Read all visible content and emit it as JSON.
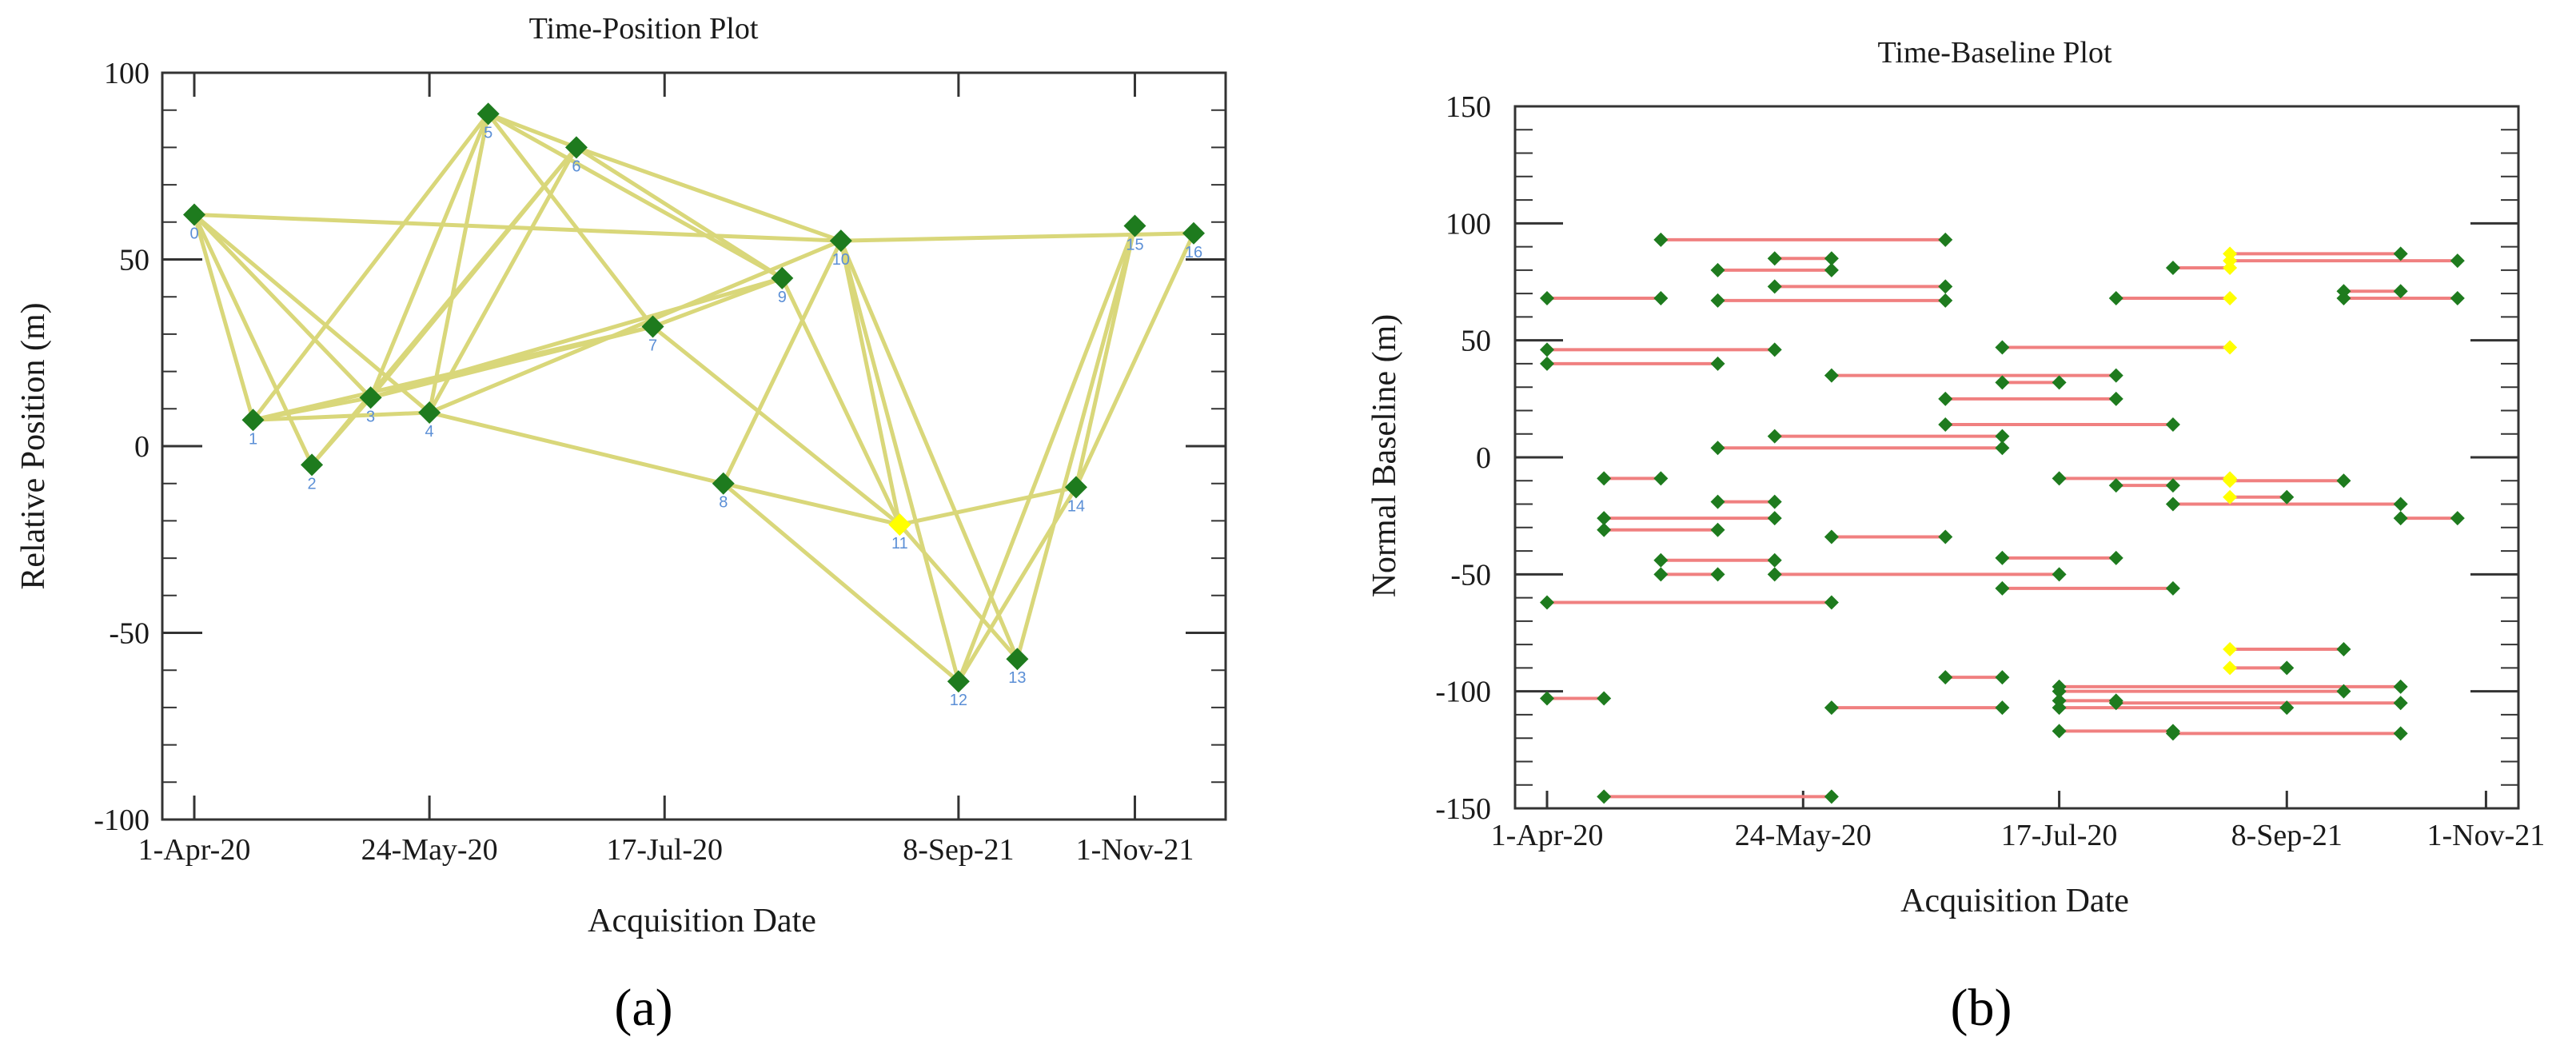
{
  "chart_data": [
    {
      "type": "scatter",
      "panel_label": "(a)",
      "title": "Time-Position Plot",
      "xlabel": "Acquisition Date",
      "ylabel": "Relative Position (m)",
      "xlim": [
        -0.3,
        17.0
      ],
      "ylim": [
        -100,
        100
      ],
      "x_tick_positions": [
        0,
        4,
        8,
        13,
        16
      ],
      "x_tick_labels": [
        "1-Apr-20",
        "24-May-20",
        "17-Jul-20",
        "8-Sep-21",
        "1-Nov-21"
      ],
      "y_ticks": [
        100,
        50,
        0,
        -50,
        -100
      ],
      "y_tick_labels": [
        "100",
        "50",
        "0",
        "-50",
        "-100"
      ],
      "colors": {
        "point": "#1e7b1e",
        "super_master": "#ffff00",
        "connection": "#d9d77a",
        "label": "#5b8fd6",
        "axis": "#333333"
      },
      "points": [
        {
          "id": "0",
          "x": 0,
          "y": 62
        },
        {
          "id": "1",
          "x": 1,
          "y": 7
        },
        {
          "id": "2",
          "x": 2,
          "y": -5
        },
        {
          "id": "3",
          "x": 3,
          "y": 13
        },
        {
          "id": "4",
          "x": 4,
          "y": 9
        },
        {
          "id": "5",
          "x": 5,
          "y": 89
        },
        {
          "id": "6",
          "x": 6.5,
          "y": 80
        },
        {
          "id": "7",
          "x": 7.8,
          "y": 32
        },
        {
          "id": "8",
          "x": 9,
          "y": -10
        },
        {
          "id": "9",
          "x": 10,
          "y": 45
        },
        {
          "id": "10",
          "x": 11,
          "y": 55
        },
        {
          "id": "11",
          "x": 12,
          "y": -21
        },
        {
          "id": "12",
          "x": 13,
          "y": -63
        },
        {
          "id": "13",
          "x": 14,
          "y": -57
        },
        {
          "id": "14",
          "x": 15,
          "y": -11
        },
        {
          "id": "15",
          "x": 16,
          "y": 59
        },
        {
          "id": "16",
          "x": 17,
          "y": 57
        }
      ],
      "super_master_index": 11,
      "connections": [
        [
          0,
          1
        ],
        [
          0,
          2
        ],
        [
          0,
          3
        ],
        [
          0,
          4
        ],
        [
          0,
          10
        ],
        [
          1,
          3
        ],
        [
          1,
          4
        ],
        [
          1,
          5
        ],
        [
          1,
          7
        ],
        [
          2,
          3
        ],
        [
          2,
          6
        ],
        [
          3,
          5
        ],
        [
          3,
          6
        ],
        [
          3,
          7
        ],
        [
          3,
          9
        ],
        [
          4,
          5
        ],
        [
          4,
          6
        ],
        [
          4,
          8
        ],
        [
          4,
          10
        ],
        [
          5,
          6
        ],
        [
          5,
          7
        ],
        [
          5,
          9
        ],
        [
          6,
          9
        ],
        [
          6,
          10
        ],
        [
          7,
          9
        ],
        [
          7,
          11
        ],
        [
          8,
          10
        ],
        [
          8,
          11
        ],
        [
          8,
          12
        ],
        [
          9,
          11
        ],
        [
          10,
          11
        ],
        [
          10,
          12
        ],
        [
          10,
          13
        ],
        [
          10,
          16
        ],
        [
          11,
          13
        ],
        [
          11,
          14
        ],
        [
          12,
          14
        ],
        [
          12,
          15
        ],
        [
          13,
          15
        ],
        [
          14,
          15
        ],
        [
          14,
          16
        ]
      ]
    },
    {
      "type": "scatter",
      "panel_label": "(b)",
      "title": "Time-Baseline Plot",
      "xlabel": "Acquisition Date",
      "ylabel": "Normal Baseline (m)",
      "xlim": [
        -0.2,
        17.0
      ],
      "ylim": [
        -150,
        150
      ],
      "x_tick_positions": [
        0,
        4.5,
        9,
        13,
        16.5
      ],
      "x_tick_labels": [
        "1-Apr-20",
        "24-May-20",
        "17-Jul-20",
        "8-Sep-21",
        "1-Nov-21"
      ],
      "y_ticks": [
        150,
        100,
        50,
        0,
        -50,
        -100,
        -150
      ],
      "y_tick_labels": [
        "150",
        "100",
        "50",
        "0",
        "-50",
        "-100",
        "-150"
      ],
      "colors": {
        "point": "#1e7b1e",
        "super_master": "#ffff00",
        "connection": "#f08080",
        "axis": "#333333"
      },
      "pairs": [
        {
          "x1": 2,
          "x2": 7,
          "y": 93,
          "y2": 93
        },
        {
          "x1": 4,
          "x2": 5,
          "y": 85,
          "y2": 85
        },
        {
          "x1": 3,
          "x2": 5,
          "y": 80,
          "y2": 80
        },
        {
          "x1": 4,
          "x2": 7,
          "y": 73,
          "y2": 73
        },
        {
          "x1": 3,
          "x2": 7,
          "y": 67,
          "y2": 67
        },
        {
          "x1": 0,
          "x2": 2,
          "y": 68,
          "y2": 68
        },
        {
          "x1": 0,
          "x2": 4,
          "y": 46,
          "y2": 46
        },
        {
          "x1": 0,
          "x2": 3,
          "y": 40,
          "y2": 40
        },
        {
          "x1": 11,
          "x2": 12,
          "y": 81,
          "y2": 81,
          "super_end": 2
        },
        {
          "x1": 12,
          "x2": 15,
          "y": 87,
          "y2": 87,
          "super_end": 1
        },
        {
          "x1": 12,
          "x2": 16,
          "y": 84,
          "y2": 84,
          "super_end": 1
        },
        {
          "x1": 10,
          "x2": 12,
          "y": 68,
          "y2": 68,
          "super_end": 2
        },
        {
          "x1": 14,
          "x2": 15,
          "y": 71,
          "y2": 71
        },
        {
          "x1": 14,
          "x2": 16,
          "y": 68,
          "y2": 68
        },
        {
          "x1": 8,
          "x2": 12,
          "y": 47,
          "y2": 47,
          "super_end": 2
        },
        {
          "x1": 5,
          "x2": 10,
          "y": 35,
          "y2": 35
        },
        {
          "x1": 8,
          "x2": 9,
          "y": 32,
          "y2": 32
        },
        {
          "x1": 7,
          "x2": 10,
          "y": 25,
          "y2": 25
        },
        {
          "x1": 7,
          "x2": 11,
          "y": 14,
          "y2": 14
        },
        {
          "x1": 4,
          "x2": 8,
          "y": 9,
          "y2": 9
        },
        {
          "x1": 3,
          "x2": 8,
          "y": 4,
          "y2": 4
        },
        {
          "x1": 1,
          "x2": 2,
          "y": -9,
          "y2": -9
        },
        {
          "x1": 9,
          "x2": 12,
          "y": -9,
          "y2": -9,
          "super_end": 2
        },
        {
          "x1": 12,
          "x2": 14,
          "y": -10,
          "y2": -10,
          "super_end": 1
        },
        {
          "x1": 10,
          "x2": 11,
          "y": -12,
          "y2": -12
        },
        {
          "x1": 12,
          "x2": 13,
          "y": -17,
          "y2": -17,
          "super_end": 1
        },
        {
          "x1": 11,
          "x2": 15,
          "y": -20,
          "y2": -20
        },
        {
          "x1": 15,
          "x2": 16,
          "y": -26,
          "y2": -26
        },
        {
          "x1": 3,
          "x2": 4,
          "y": -19,
          "y2": -19
        },
        {
          "x1": 1,
          "x2": 4,
          "y": -26,
          "y2": -26
        },
        {
          "x1": 1,
          "x2": 3,
          "y": -31,
          "y2": -31
        },
        {
          "x1": 5,
          "x2": 7,
          "y": -34,
          "y2": -34
        },
        {
          "x1": 2,
          "x2": 4,
          "y": -44,
          "y2": -44
        },
        {
          "x1": 8,
          "x2": 10,
          "y": -43,
          "y2": -43
        },
        {
          "x1": 2,
          "x2": 3,
          "y": -50,
          "y2": -50
        },
        {
          "x1": 4,
          "x2": 9,
          "y": -50,
          "y2": -50
        },
        {
          "x1": 8,
          "x2": 11,
          "y": -56,
          "y2": -56
        },
        {
          "x1": 0,
          "x2": 5,
          "y": -62,
          "y2": -62
        },
        {
          "x1": 12,
          "x2": 14,
          "y": -82,
          "y2": -82,
          "super_end": 1
        },
        {
          "x1": 12,
          "x2": 13,
          "y": -90,
          "y2": -90,
          "super_end": 1
        },
        {
          "x1": 7,
          "x2": 8,
          "y": -94,
          "y2": -94
        },
        {
          "x1": 9,
          "x2": 14,
          "y": -100,
          "y2": -100
        },
        {
          "x1": 9,
          "x2": 15,
          "y": -98,
          "y2": -98
        },
        {
          "x1": 9,
          "x2": 10,
          "y": -104,
          "y2": -104
        },
        {
          "x1": 9,
          "x2": 13,
          "y": -107,
          "y2": -107
        },
        {
          "x1": 10,
          "x2": 15,
          "y": -105,
          "y2": -105
        },
        {
          "x1": 0,
          "x2": 1,
          "y": -103,
          "y2": -103
        },
        {
          "x1": 5,
          "x2": 8,
          "y": -107,
          "y2": -107
        },
        {
          "x1": 9,
          "x2": 11,
          "y": -117,
          "y2": -117
        },
        {
          "x1": 11,
          "x2": 15,
          "y": -118,
          "y2": -118
        },
        {
          "x1": 1,
          "x2": 5,
          "y": -145,
          "y2": -145
        }
      ]
    }
  ]
}
